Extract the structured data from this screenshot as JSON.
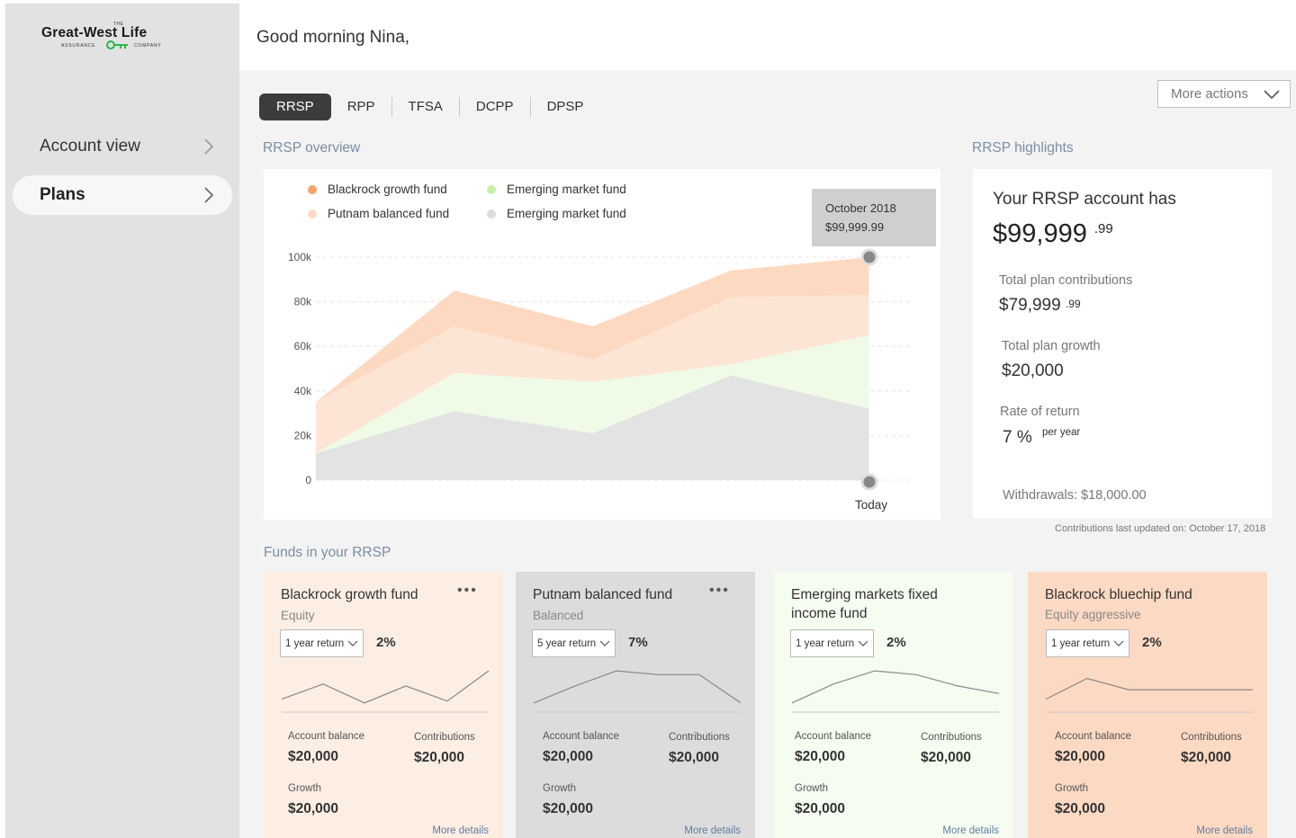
{
  "brand": {
    "the": "THE",
    "name": "Great-West Life",
    "sub_left": "ASSURANCE",
    "sub_right": "COMPANY"
  },
  "sidebar": {
    "items": [
      {
        "label": "Account view"
      },
      {
        "label": "Plans"
      }
    ]
  },
  "header": {
    "greeting": "Good morning Nina,"
  },
  "tabs": [
    "RRSP",
    "RPP",
    "TFSA",
    "DCPP",
    "DPSP"
  ],
  "more_actions": "More actions",
  "overview": {
    "title": "RRSP overview",
    "legend": [
      {
        "label": "Blackrock growth fund",
        "color": "#f4a26b"
      },
      {
        "label": "Emerging market fund",
        "color": "#c8f0a8"
      },
      {
        "label": "Putnam balanced fund",
        "color": "#fbd9c2"
      },
      {
        "label": "Emerging market fund",
        "color": "#dcdcdc"
      }
    ],
    "tooltip": {
      "date": "October 2018",
      "value": "$99,999.99"
    },
    "today_label": "Today"
  },
  "chart_data": {
    "type": "area",
    "stacked": true,
    "x": [
      0,
      1,
      2,
      3,
      4
    ],
    "ylim": [
      0,
      100000
    ],
    "yticks": [
      "0",
      "20k",
      "40k",
      "60k",
      "80k",
      "100k"
    ],
    "grid": true,
    "legend_position": "top-left",
    "series": [
      {
        "name": "Emerging market fund",
        "color": "#e3e3e3",
        "values": [
          12000,
          31000,
          21000,
          47000,
          32000
        ]
      },
      {
        "name": "Emerging market fund",
        "color": "#effbe6",
        "values": [
          0,
          17000,
          23000,
          5000,
          33000
        ]
      },
      {
        "name": "Putnam balanced fund",
        "color": "#fde5d5",
        "values": [
          23000,
          21000,
          10000,
          30000,
          18000
        ]
      },
      {
        "name": "Blackrock growth fund",
        "color": "#fdd9c1",
        "values": [
          0,
          16000,
          15000,
          12000,
          17000
        ]
      }
    ]
  },
  "highlights": {
    "title": "RRSP highlights",
    "headline": "Your RRSP account has",
    "balance_main": "$99,999",
    "balance_cents": ".99",
    "contrib_label": "Total plan contributions",
    "contrib_main": "$79,999",
    "contrib_cents": ".99",
    "growth_label": "Total plan growth",
    "growth_value": "$20,000",
    "ror_label": "Rate of return",
    "ror_value": "7 %",
    "ror_unit": "per year",
    "withdrawals": "Withdrawals: $18,000.00",
    "updated": "Contributions last updated on: October 17, 2018"
  },
  "funds": {
    "title": "Funds in your RRSP",
    "items": [
      {
        "name": "Blackrock growth fund",
        "type": "Equity",
        "period": "1 year return",
        "pct": "2%",
        "bg": "#fdeee4",
        "has_menu": true,
        "spark": [
          0.2,
          0.6,
          0.1,
          0.55,
          0.15,
          0.95
        ],
        "balance_label": "Account balance",
        "balance": "$20,000",
        "contrib_label": "Contributions",
        "contrib": "$20,000",
        "growth_label": "Growth",
        "growth": "$20,000",
        "more": "More details"
      },
      {
        "name": "Putnam balanced fund",
        "type": "Balanced",
        "period": "5 year return",
        "pct": "7%",
        "bg": "#dcdcdc",
        "has_menu": true,
        "spark": [
          0.1,
          0.55,
          0.95,
          0.85,
          0.85,
          0.1
        ],
        "balance_label": "Account balance",
        "balance": "$20,000",
        "contrib_label": "Contributions",
        "contrib": "$20,000",
        "growth_label": "Growth",
        "growth": "$20,000",
        "more": "More details"
      },
      {
        "name": "Emerging markets fixed income fund",
        "type": "",
        "period": "1 year return",
        "pct": "2%",
        "bg": "#f4fdf0",
        "has_menu": false,
        "spark": [
          0.1,
          0.6,
          0.95,
          0.85,
          0.55,
          0.35
        ],
        "balance_label": "Account balance",
        "balance": "$20,000",
        "contrib_label": "Contributions",
        "contrib": "$20,000",
        "growth_label": "Growth",
        "growth": "$20,000",
        "more": "More details"
      },
      {
        "name": "Blackrock bluechip fund",
        "type": "Equity aggressive",
        "period": "1 year return",
        "pct": "2%",
        "bg": "#fcd9c3",
        "has_menu": false,
        "spark": [
          0.2,
          0.75,
          0.45,
          0.45,
          0.45,
          0.45
        ],
        "balance_label": "Account balance",
        "balance": "$20,000",
        "contrib_label": "Contributions",
        "contrib": "$20,000",
        "growth_label": "Growth",
        "growth": "$20,000",
        "more": "More details"
      }
    ]
  }
}
